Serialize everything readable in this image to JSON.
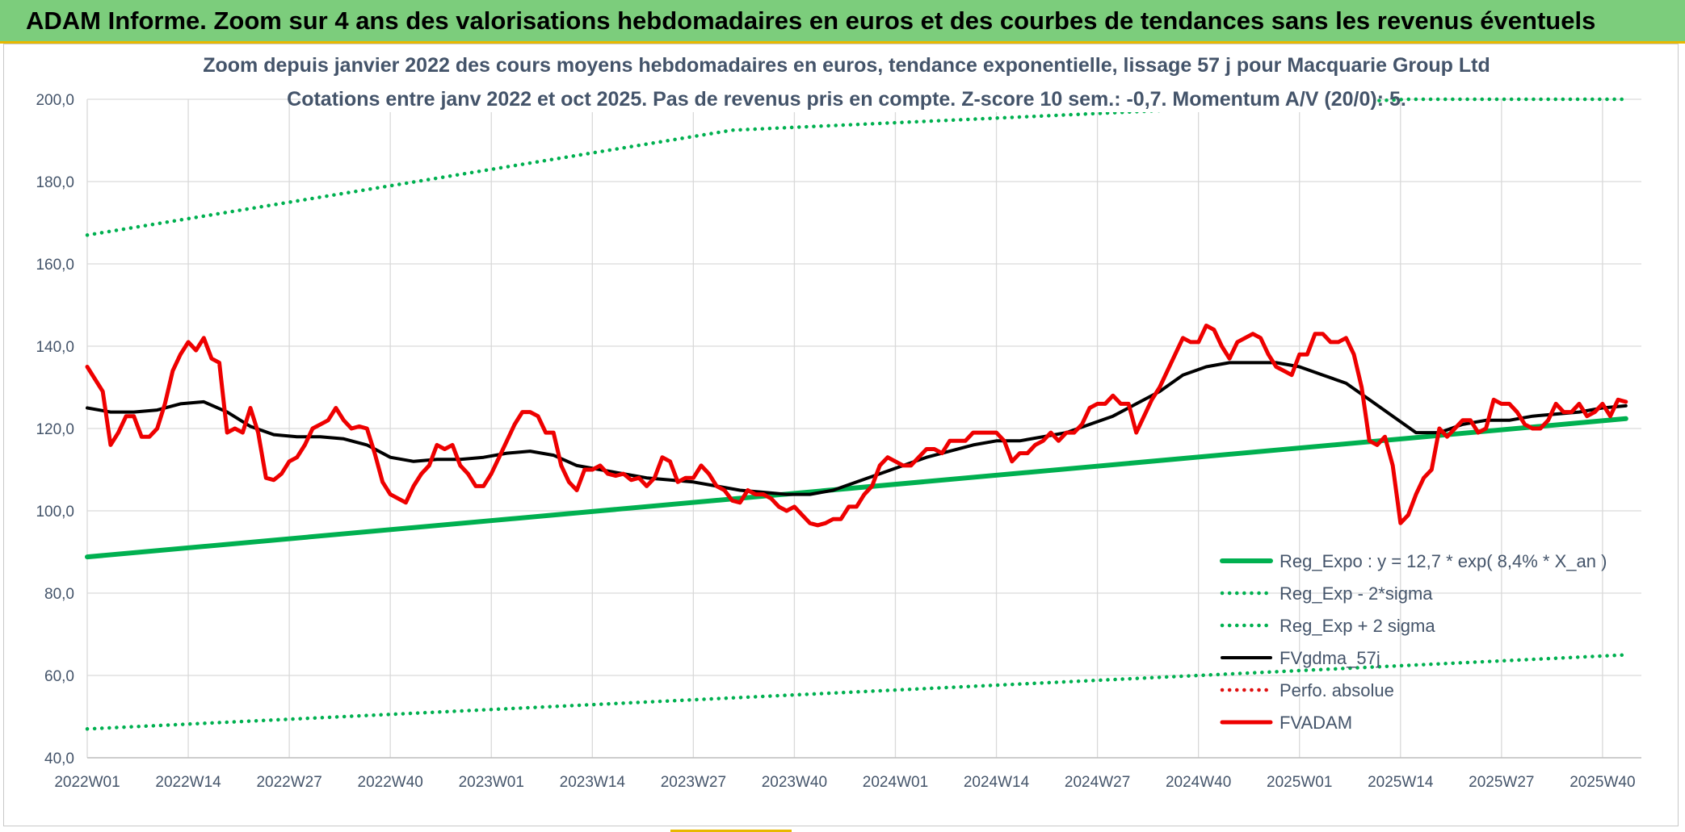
{
  "banner": {
    "title": "ADAM Informe. Zoom sur 4 ans des valorisations hebdomadaires en euros et des courbes de tendances sans les revenus éventuels"
  },
  "colors": {
    "banner_bg": "#7ccd7c",
    "accent_yellow": "#e8b800",
    "trend_green": "#00b050",
    "price_red": "#ee0000",
    "moving_avg": "#000000",
    "perfo_red": "#e01010",
    "text_axis": "#44546a"
  },
  "chart_data": {
    "type": "line",
    "title": "Zoom depuis janvier 2022 des cours moyens hebdomadaires en euros, tendance exponentielle, lissage 57 j pour Macquarie Group Ltd",
    "subtitle": "Cotations entre janv 2022 et oct 2025. Pas de revenus pris en compte. Z-score 10 sem.: -0,7. Momentum A/V (20/0): 5.",
    "xlabel": "",
    "ylabel": "",
    "ylim": [
      40,
      200
    ],
    "yticks": [
      "40,0",
      "60,0",
      "80,0",
      "100,0",
      "120,0",
      "140,0",
      "160,0",
      "180,0",
      "200,0"
    ],
    "yticks_values": [
      40,
      60,
      80,
      100,
      120,
      140,
      160,
      180,
      200
    ],
    "xticks": [
      "2022W01",
      "2022W14",
      "2022W27",
      "2022W40",
      "2023W01",
      "2023W14",
      "2023W27",
      "2023W40",
      "2024W01",
      "2024W14",
      "2024W27",
      "2024W40",
      "2025W01",
      "2025W14",
      "2025W27",
      "2025W40"
    ],
    "xticks_index": [
      0,
      13,
      26,
      39,
      52,
      65,
      78,
      91,
      104,
      117,
      130,
      143,
      156,
      169,
      182,
      195
    ],
    "n_weeks": 201,
    "grid": true,
    "legend_position": "bottom-right",
    "series": [
      {
        "name": "FVADAM",
        "style": "solid-thick",
        "color": "#ee0000",
        "points": [
          [
            0,
            135
          ],
          [
            2,
            129
          ],
          [
            3,
            116
          ],
          [
            4,
            119
          ],
          [
            5,
            123
          ],
          [
            6,
            123
          ],
          [
            7,
            118
          ],
          [
            8,
            118
          ],
          [
            9,
            120
          ],
          [
            10,
            126
          ],
          [
            11,
            134
          ],
          [
            12,
            138
          ],
          [
            13,
            141
          ],
          [
            14,
            139
          ],
          [
            15,
            142
          ],
          [
            16,
            137
          ],
          [
            17,
            136
          ],
          [
            18,
            119
          ],
          [
            19,
            120
          ],
          [
            20,
            119
          ],
          [
            21,
            125
          ],
          [
            22,
            119
          ],
          [
            23,
            108
          ],
          [
            24,
            107.5
          ],
          [
            25,
            109
          ],
          [
            26,
            112
          ],
          [
            27,
            113
          ],
          [
            28,
            116
          ],
          [
            29,
            120
          ],
          [
            30,
            121
          ],
          [
            31,
            122
          ],
          [
            32,
            125
          ],
          [
            33,
            122
          ],
          [
            34,
            120
          ],
          [
            35,
            120.5
          ],
          [
            36,
            120
          ],
          [
            37,
            114
          ],
          [
            38,
            107
          ],
          [
            39,
            104
          ],
          [
            40,
            103
          ],
          [
            41,
            102
          ],
          [
            42,
            106
          ],
          [
            43,
            109
          ],
          [
            44,
            111
          ],
          [
            45,
            116
          ],
          [
            46,
            115
          ],
          [
            47,
            116
          ],
          [
            48,
            111
          ],
          [
            49,
            109
          ],
          [
            50,
            106
          ],
          [
            51,
            106
          ],
          [
            52,
            109
          ],
          [
            53,
            113
          ],
          [
            54,
            117
          ],
          [
            55,
            121
          ],
          [
            56,
            124
          ],
          [
            57,
            124
          ],
          [
            58,
            123
          ],
          [
            59,
            119
          ],
          [
            60,
            119
          ],
          [
            61,
            111
          ],
          [
            62,
            107
          ],
          [
            63,
            105
          ],
          [
            64,
            110
          ],
          [
            65,
            110
          ],
          [
            66,
            111
          ],
          [
            67,
            109
          ],
          [
            68,
            108.5
          ],
          [
            69,
            109
          ],
          [
            70,
            107.5
          ],
          [
            71,
            108
          ],
          [
            72,
            106
          ],
          [
            73,
            108
          ],
          [
            74,
            113
          ],
          [
            75,
            112
          ],
          [
            76,
            107
          ],
          [
            77,
            108
          ],
          [
            78,
            108
          ],
          [
            79,
            111
          ],
          [
            80,
            109
          ],
          [
            81,
            106
          ],
          [
            82,
            105
          ],
          [
            83,
            102.5
          ],
          [
            84,
            102
          ],
          [
            85,
            105
          ],
          [
            86,
            104
          ],
          [
            87,
            104
          ],
          [
            88,
            103
          ],
          [
            89,
            101
          ],
          [
            90,
            100
          ],
          [
            91,
            101
          ],
          [
            92,
            99
          ],
          [
            93,
            97
          ],
          [
            94,
            96.5
          ],
          [
            95,
            97
          ],
          [
            96,
            98
          ],
          [
            97,
            98
          ],
          [
            98,
            101
          ],
          [
            99,
            101
          ],
          [
            100,
            104
          ],
          [
            101,
            106
          ],
          [
            102,
            111
          ],
          [
            103,
            113
          ],
          [
            104,
            112
          ],
          [
            105,
            111
          ],
          [
            106,
            111
          ],
          [
            107,
            113
          ],
          [
            108,
            115
          ],
          [
            109,
            115
          ],
          [
            110,
            114
          ],
          [
            111,
            117
          ],
          [
            112,
            117
          ],
          [
            113,
            117
          ],
          [
            114,
            119
          ],
          [
            115,
            119
          ],
          [
            116,
            119
          ],
          [
            117,
            119
          ],
          [
            118,
            117
          ],
          [
            119,
            112
          ],
          [
            120,
            114
          ],
          [
            121,
            114
          ],
          [
            122,
            116
          ],
          [
            123,
            117
          ],
          [
            124,
            119
          ],
          [
            125,
            117
          ],
          [
            126,
            119
          ],
          [
            127,
            119
          ],
          [
            128,
            121
          ],
          [
            129,
            125
          ],
          [
            130,
            126
          ],
          [
            131,
            126
          ],
          [
            132,
            128
          ],
          [
            133,
            126
          ],
          [
            134,
            126
          ],
          [
            135,
            119
          ],
          [
            136,
            123
          ],
          [
            137,
            127
          ],
          [
            138,
            130
          ],
          [
            139,
            134
          ],
          [
            140,
            138
          ],
          [
            141,
            142
          ],
          [
            142,
            141
          ],
          [
            143,
            141
          ],
          [
            144,
            145
          ],
          [
            145,
            144
          ],
          [
            146,
            140
          ],
          [
            147,
            137
          ],
          [
            148,
            141
          ],
          [
            149,
            142
          ],
          [
            150,
            143
          ],
          [
            151,
            142
          ],
          [
            152,
            138
          ],
          [
            153,
            135
          ],
          [
            154,
            134
          ],
          [
            155,
            133
          ],
          [
            156,
            138
          ],
          [
            157,
            138
          ],
          [
            158,
            143
          ],
          [
            159,
            143
          ],
          [
            160,
            141
          ],
          [
            161,
            141
          ],
          [
            162,
            142
          ],
          [
            163,
            138
          ],
          [
            164,
            130
          ],
          [
            165,
            117
          ],
          [
            166,
            116
          ],
          [
            167,
            118
          ],
          [
            168,
            111
          ],
          [
            169,
            97
          ],
          [
            170,
            99
          ],
          [
            171,
            104
          ],
          [
            172,
            108
          ],
          [
            173,
            110
          ],
          [
            174,
            120
          ],
          [
            175,
            118
          ],
          [
            176,
            120
          ],
          [
            177,
            122
          ],
          [
            178,
            122
          ],
          [
            179,
            119
          ],
          [
            180,
            120
          ],
          [
            181,
            127
          ],
          [
            182,
            126
          ],
          [
            183,
            126
          ],
          [
            184,
            124
          ],
          [
            185,
            121
          ],
          [
            186,
            120
          ],
          [
            187,
            120
          ],
          [
            188,
            122
          ],
          [
            189,
            126
          ],
          [
            190,
            124
          ],
          [
            191,
            124
          ],
          [
            192,
            126
          ],
          [
            193,
            123
          ],
          [
            194,
            124
          ],
          [
            195,
            126
          ],
          [
            196,
            123
          ],
          [
            197,
            127
          ],
          [
            198,
            126.5
          ]
        ]
      },
      {
        "name": "FVgdma_57j",
        "style": "solid",
        "color": "#000000",
        "points": [
          [
            0,
            125
          ],
          [
            3,
            124
          ],
          [
            6,
            124
          ],
          [
            9,
            124.5
          ],
          [
            12,
            126
          ],
          [
            15,
            126.5
          ],
          [
            18,
            124
          ],
          [
            21,
            120.5
          ],
          [
            24,
            118.5
          ],
          [
            27,
            118
          ],
          [
            30,
            118
          ],
          [
            33,
            117.5
          ],
          [
            36,
            116
          ],
          [
            39,
            113
          ],
          [
            42,
            112
          ],
          [
            45,
            112.5
          ],
          [
            48,
            112.5
          ],
          [
            51,
            113
          ],
          [
            54,
            114
          ],
          [
            57,
            114.5
          ],
          [
            60,
            113.5
          ],
          [
            63,
            111
          ],
          [
            66,
            110
          ],
          [
            69,
            109
          ],
          [
            72,
            108
          ],
          [
            75,
            107.5
          ],
          [
            78,
            107
          ],
          [
            81,
            106
          ],
          [
            84,
            105
          ],
          [
            87,
            104.5
          ],
          [
            90,
            104
          ],
          [
            93,
            104
          ],
          [
            96,
            105
          ],
          [
            99,
            107
          ],
          [
            102,
            109
          ],
          [
            105,
            111
          ],
          [
            108,
            113
          ],
          [
            111,
            114.5
          ],
          [
            114,
            116
          ],
          [
            117,
            117
          ],
          [
            120,
            117
          ],
          [
            123,
            118
          ],
          [
            126,
            119
          ],
          [
            129,
            121
          ],
          [
            132,
            123
          ],
          [
            135,
            126
          ],
          [
            138,
            129
          ],
          [
            141,
            133
          ],
          [
            144,
            135
          ],
          [
            147,
            136
          ],
          [
            150,
            136
          ],
          [
            153,
            136
          ],
          [
            156,
            135
          ],
          [
            159,
            133
          ],
          [
            162,
            131
          ],
          [
            165,
            127
          ],
          [
            168,
            123
          ],
          [
            171,
            119
          ],
          [
            174,
            119
          ],
          [
            177,
            121
          ],
          [
            180,
            122
          ],
          [
            183,
            122
          ],
          [
            186,
            123
          ],
          [
            189,
            123.5
          ],
          [
            192,
            124
          ],
          [
            195,
            125
          ],
          [
            198,
            125.5
          ]
        ]
      },
      {
        "name": "Reg_Expo : y = 12,7 * exp( 8,4% *  X_an )",
        "style": "solid-thick",
        "color": "#00b050",
        "points": [
          [
            0,
            88.8
          ],
          [
            198,
            122.4
          ]
        ]
      },
      {
        "name": "Reg_Exp - 2*sigma",
        "style": "dotted",
        "color": "#00b050",
        "points": [
          [
            0,
            47
          ],
          [
            198,
            65
          ]
        ]
      },
      {
        "name": "Reg_Exp + 2 sigma",
        "style": "dotted",
        "color": "#00b050",
        "points": [
          [
            0,
            167
          ],
          [
            83,
            192.5
          ],
          [
            170,
            200
          ],
          [
            198,
            200
          ]
        ]
      },
      {
        "name": "Perfo. absolue",
        "style": "dotted",
        "color": "#e01010",
        "points": []
      }
    ],
    "legend": [
      "Reg_Expo : y = 12,7 * exp( 8,4% *  X_an )",
      "Reg_Exp - 2*sigma",
      "Reg_Exp + 2 sigma",
      "FVgdma_57j",
      "Perfo. absolue",
      "FVADAM"
    ]
  }
}
